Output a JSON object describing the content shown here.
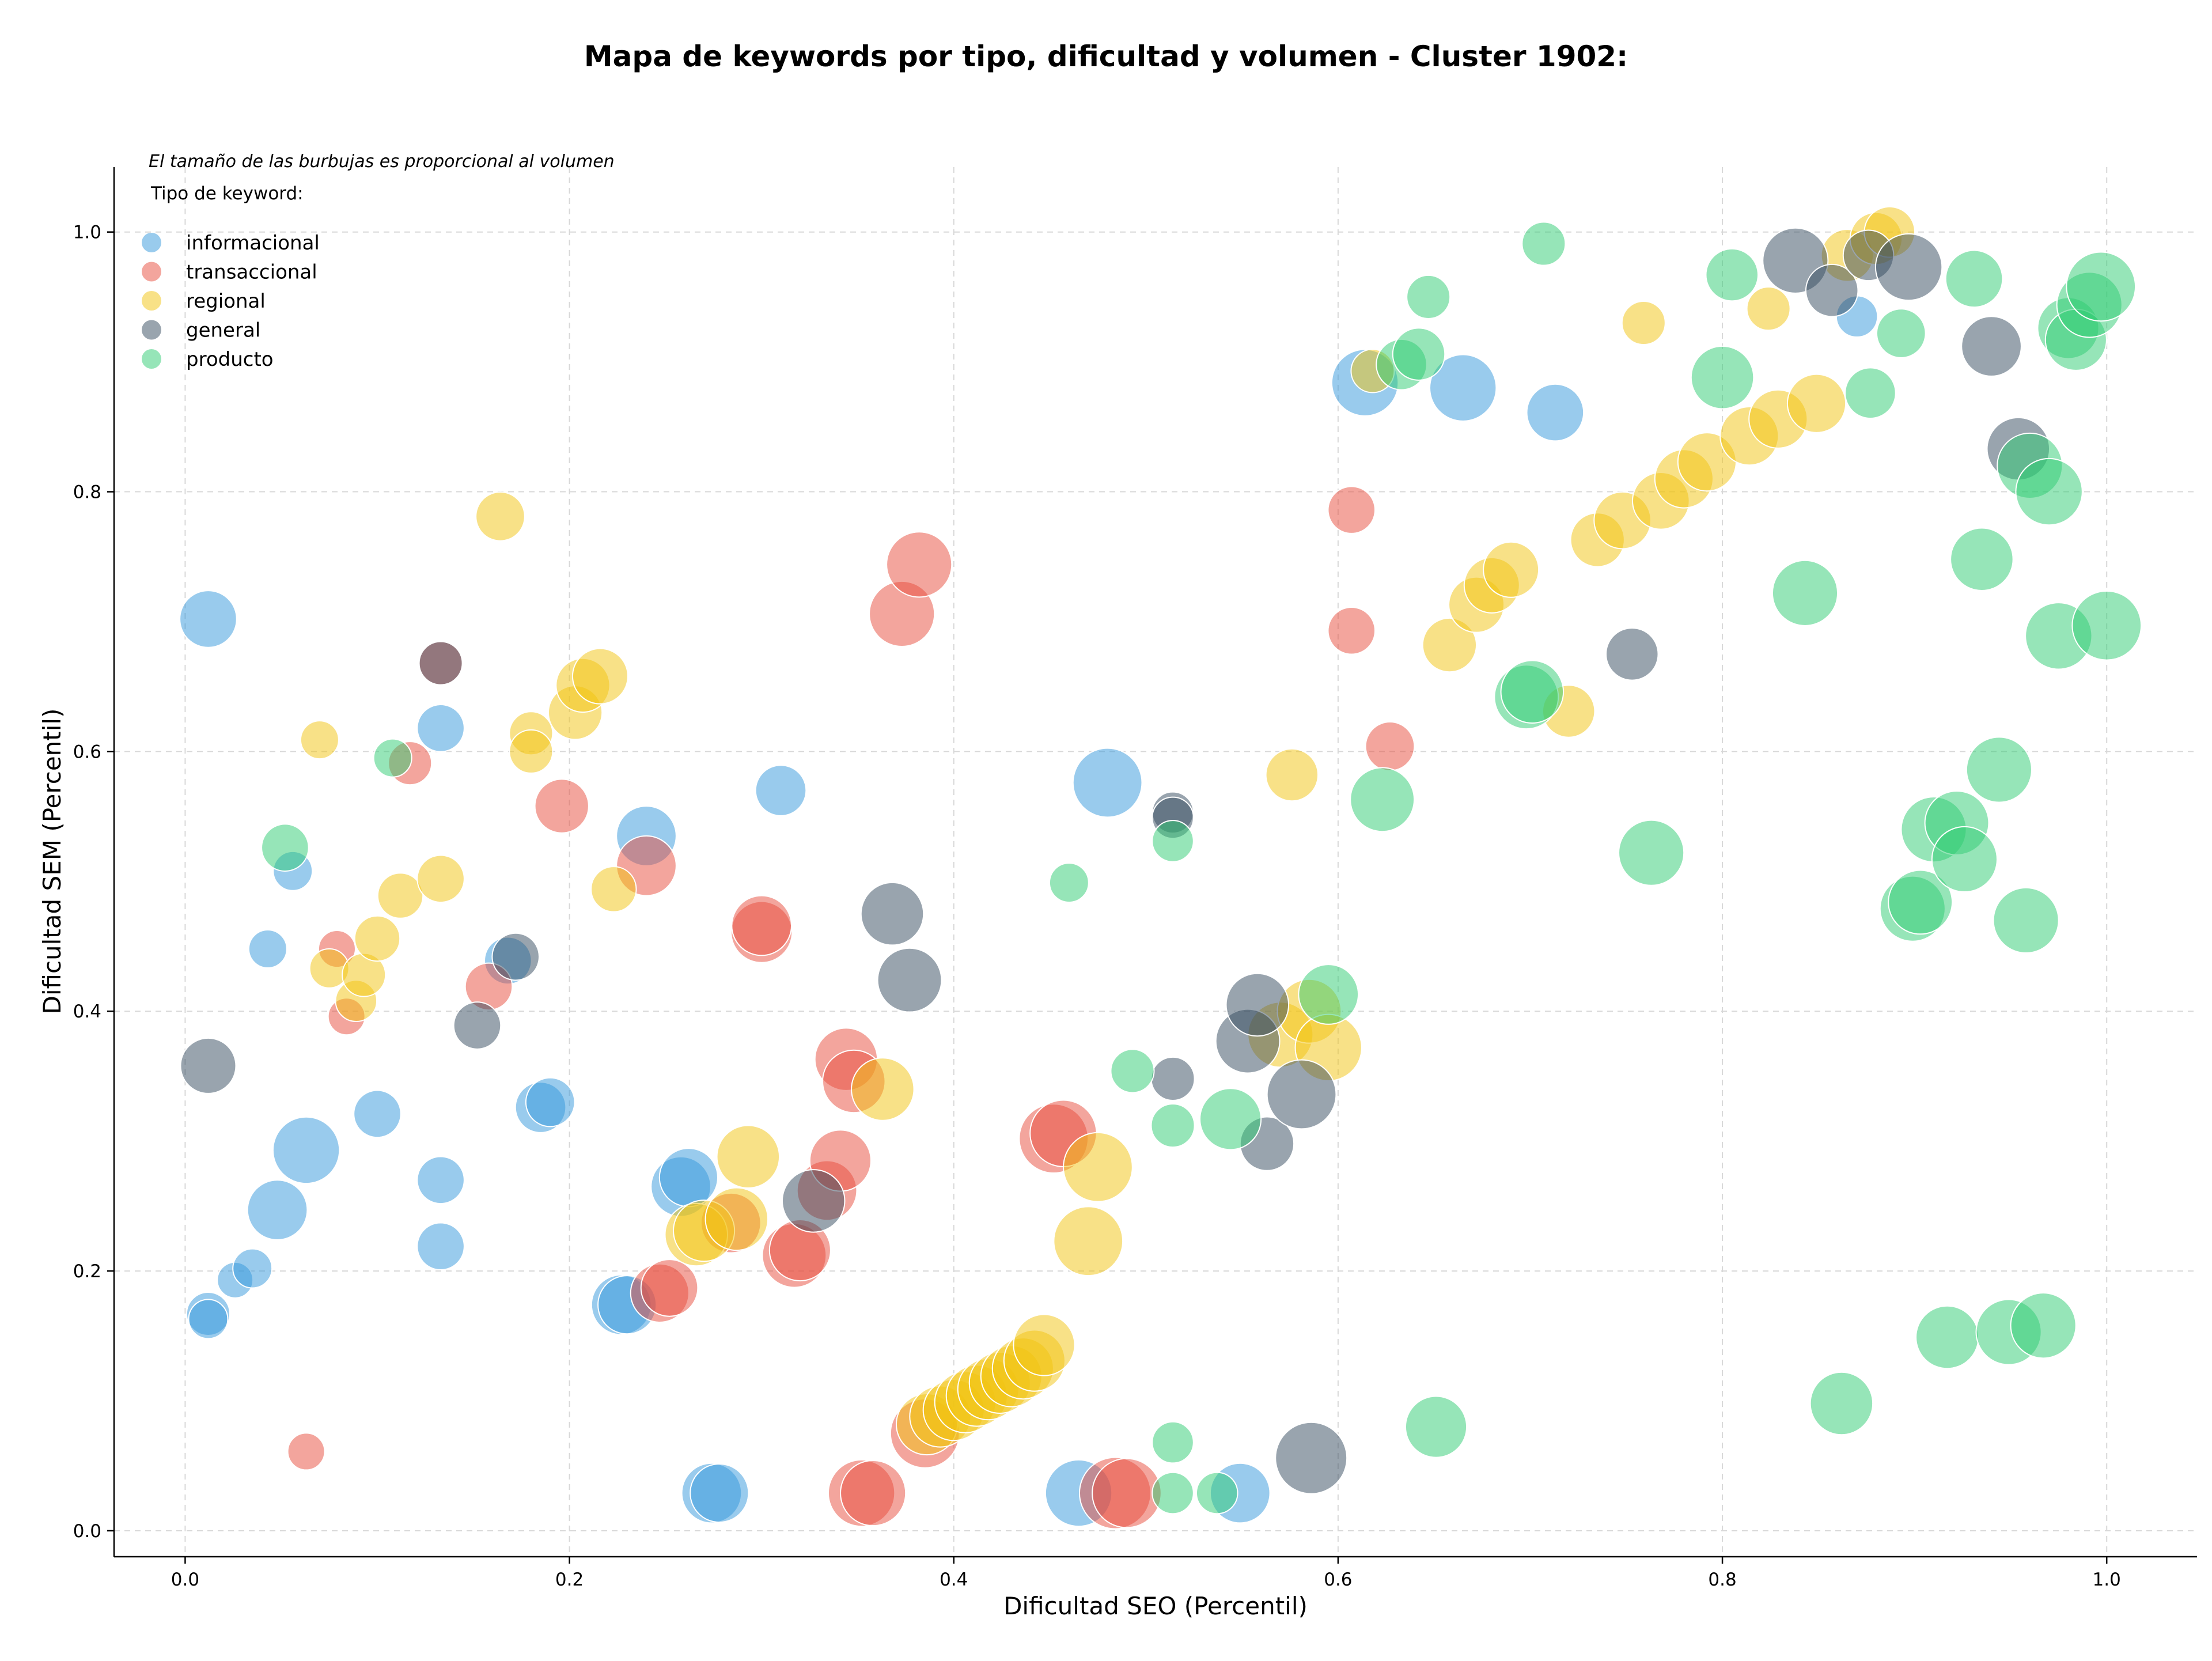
{
  "chart_data": {
    "type": "scatter",
    "title": "Mapa de keywords por tipo, dificultad y volumen - Cluster 1902:",
    "xlabel": "Dificultad SEO (Percentil)",
    "ylabel": "Dificultad SEM (Percentil)",
    "xlim": [
      -0.037,
      1.047
    ],
    "ylim": [
      -0.02,
      1.05
    ],
    "xticks": [
      "0.0",
      "0.2",
      "0.4",
      "0.6",
      "0.8",
      "1.0"
    ],
    "yticks": [
      "0.0",
      "0.2",
      "0.4",
      "0.6",
      "0.8",
      "1.0"
    ],
    "grid": true,
    "note": "El tamaño de las burbujas es proporcional al volumen",
    "legend": {
      "title": "Tipo de keyword:",
      "placement": "top-left"
    },
    "size_encoding": "bubble area proportional to keyword volume (values below are relative sizes, 1 = largest)",
    "series": [
      {
        "name": "informacional",
        "color": "#3498db",
        "points": [
          [
            0.012,
            0.702,
            0.38
          ],
          [
            0.012,
            0.167,
            0.22
          ],
          [
            0.012,
            0.163,
            0.18
          ],
          [
            0.026,
            0.193,
            0.15
          ],
          [
            0.035,
            0.202,
            0.18
          ],
          [
            0.043,
            0.448,
            0.17
          ],
          [
            0.048,
            0.247,
            0.42
          ],
          [
            0.056,
            0.508,
            0.18
          ],
          [
            0.063,
            0.293,
            0.52
          ],
          [
            0.1,
            0.321,
            0.26
          ],
          [
            0.133,
            0.618,
            0.26
          ],
          [
            0.133,
            0.27,
            0.26
          ],
          [
            0.133,
            0.219,
            0.26
          ],
          [
            0.168,
            0.439,
            0.26
          ],
          [
            0.185,
            0.326,
            0.3
          ],
          [
            0.19,
            0.33,
            0.28
          ],
          [
            0.24,
            0.535,
            0.42
          ],
          [
            0.227,
            0.174,
            0.42
          ],
          [
            0.23,
            0.174,
            0.4
          ],
          [
            0.258,
            0.265,
            0.42
          ],
          [
            0.262,
            0.272,
            0.4
          ],
          [
            0.274,
            0.029,
            0.42
          ],
          [
            0.278,
            0.029,
            0.4
          ],
          [
            0.31,
            0.57,
            0.3
          ],
          [
            0.48,
            0.576,
            0.56
          ],
          [
            0.465,
            0.029,
            0.52
          ],
          [
            0.549,
            0.029,
            0.42
          ],
          [
            0.614,
            0.884,
            0.52
          ],
          [
            0.665,
            0.88,
            0.52
          ],
          [
            0.713,
            0.861,
            0.38
          ],
          [
            0.87,
            0.935,
            0.2
          ]
        ]
      },
      {
        "name": "transaccional",
        "color": "#e74c3c",
        "points": [
          [
            0.063,
            0.061,
            0.16
          ],
          [
            0.079,
            0.448,
            0.16
          ],
          [
            0.084,
            0.396,
            0.16
          ],
          [
            0.117,
            0.591,
            0.22
          ],
          [
            0.133,
            0.668,
            0.22
          ],
          [
            0.158,
            0.419,
            0.26
          ],
          [
            0.196,
            0.558,
            0.34
          ],
          [
            0.24,
            0.512,
            0.42
          ],
          [
            0.247,
            0.183,
            0.4
          ],
          [
            0.252,
            0.187,
            0.38
          ],
          [
            0.284,
            0.237,
            0.42
          ],
          [
            0.3,
            0.461,
            0.44
          ],
          [
            0.3,
            0.466,
            0.42
          ],
          [
            0.317,
            0.212,
            0.48
          ],
          [
            0.32,
            0.216,
            0.44
          ],
          [
            0.334,
            0.262,
            0.42
          ],
          [
            0.341,
            0.285,
            0.44
          ],
          [
            0.344,
            0.363,
            0.46
          ],
          [
            0.348,
            0.346,
            0.46
          ],
          [
            0.352,
            0.029,
            0.52
          ],
          [
            0.358,
            0.029,
            0.5
          ],
          [
            0.373,
            0.706,
            0.5
          ],
          [
            0.382,
            0.744,
            0.5
          ],
          [
            0.385,
            0.075,
            0.56
          ],
          [
            0.452,
            0.302,
            0.56
          ],
          [
            0.457,
            0.306,
            0.52
          ],
          [
            0.484,
            0.029,
            0.6
          ],
          [
            0.49,
            0.029,
            0.56
          ],
          [
            0.607,
            0.786,
            0.26
          ],
          [
            0.607,
            0.693,
            0.26
          ],
          [
            0.627,
            0.604,
            0.28
          ]
        ]
      },
      {
        "name": "regional",
        "color": "#f1c40f",
        "points": [
          [
            0.07,
            0.609,
            0.17
          ],
          [
            0.075,
            0.433,
            0.18
          ],
          [
            0.089,
            0.408,
            0.2
          ],
          [
            0.093,
            0.428,
            0.22
          ],
          [
            0.1,
            0.456,
            0.24
          ],
          [
            0.112,
            0.489,
            0.24
          ],
          [
            0.133,
            0.502,
            0.26
          ],
          [
            0.164,
            0.781,
            0.28
          ],
          [
            0.18,
            0.614,
            0.22
          ],
          [
            0.18,
            0.6,
            0.22
          ],
          [
            0.203,
            0.63,
            0.34
          ],
          [
            0.207,
            0.651,
            0.34
          ],
          [
            0.216,
            0.658,
            0.36
          ],
          [
            0.223,
            0.494,
            0.24
          ],
          [
            0.266,
            0.228,
            0.46
          ],
          [
            0.27,
            0.231,
            0.44
          ],
          [
            0.287,
            0.24,
            0.46
          ],
          [
            0.293,
            0.288,
            0.46
          ],
          [
            0.363,
            0.34,
            0.46
          ],
          [
            0.386,
            0.082,
            0.44
          ],
          [
            0.393,
            0.088,
            0.44
          ],
          [
            0.4,
            0.093,
            0.44
          ],
          [
            0.406,
            0.099,
            0.44
          ],
          [
            0.412,
            0.104,
            0.44
          ],
          [
            0.418,
            0.109,
            0.44
          ],
          [
            0.424,
            0.114,
            0.44
          ],
          [
            0.43,
            0.119,
            0.44
          ],
          [
            0.436,
            0.125,
            0.44
          ],
          [
            0.442,
            0.131,
            0.44
          ],
          [
            0.447,
            0.143,
            0.44
          ],
          [
            0.47,
            0.223,
            0.56
          ],
          [
            0.475,
            0.28,
            0.56
          ],
          [
            0.57,
            0.382,
            0.5
          ],
          [
            0.585,
            0.4,
            0.48
          ],
          [
            0.595,
            0.372,
            0.52
          ],
          [
            0.576,
            0.582,
            0.32
          ],
          [
            0.618,
            0.893,
            0.22
          ],
          [
            0.658,
            0.682,
            0.34
          ],
          [
            0.672,
            0.713,
            0.36
          ],
          [
            0.68,
            0.728,
            0.36
          ],
          [
            0.69,
            0.74,
            0.36
          ],
          [
            0.72,
            0.631,
            0.32
          ],
          [
            0.735,
            0.763,
            0.34
          ],
          [
            0.748,
            0.778,
            0.38
          ],
          [
            0.768,
            0.793,
            0.38
          ],
          [
            0.78,
            0.81,
            0.4
          ],
          [
            0.792,
            0.823,
            0.4
          ],
          [
            0.814,
            0.843,
            0.4
          ],
          [
            0.829,
            0.856,
            0.4
          ],
          [
            0.849,
            0.868,
            0.4
          ],
          [
            0.824,
            0.941,
            0.22
          ],
          [
            0.759,
            0.93,
            0.22
          ],
          [
            0.865,
            0.982,
            0.32
          ],
          [
            0.88,
            0.995,
            0.32
          ],
          [
            0.887,
            1.0,
            0.3
          ]
        ]
      },
      {
        "name": "general",
        "color": "#34495e",
        "points": [
          [
            0.012,
            0.358,
            0.36
          ],
          [
            0.133,
            0.668,
            0.22
          ],
          [
            0.152,
            0.389,
            0.26
          ],
          [
            0.172,
            0.442,
            0.26
          ],
          [
            0.327,
            0.254,
            0.46
          ],
          [
            0.368,
            0.475,
            0.46
          ],
          [
            0.377,
            0.424,
            0.48
          ],
          [
            0.514,
            0.553,
            0.2
          ],
          [
            0.514,
            0.549,
            0.2
          ],
          [
            0.514,
            0.348,
            0.22
          ],
          [
            0.553,
            0.377,
            0.48
          ],
          [
            0.558,
            0.405,
            0.46
          ],
          [
            0.563,
            0.298,
            0.34
          ],
          [
            0.581,
            0.336,
            0.56
          ],
          [
            0.586,
            0.056,
            0.6
          ],
          [
            0.753,
            0.675,
            0.32
          ],
          [
            0.838,
            0.978,
            0.5
          ],
          [
            0.857,
            0.955,
            0.32
          ],
          [
            0.876,
            0.982,
            0.3
          ],
          [
            0.897,
            0.973,
            0.52
          ],
          [
            0.94,
            0.912,
            0.42
          ],
          [
            0.954,
            0.833,
            0.46
          ]
        ]
      },
      {
        "name": "producto",
        "color": "#2ecc71",
        "points": [
          [
            0.108,
            0.595,
            0.17
          ],
          [
            0.052,
            0.526,
            0.26
          ],
          [
            0.46,
            0.499,
            0.18
          ],
          [
            0.493,
            0.354,
            0.22
          ],
          [
            0.514,
            0.531,
            0.2
          ],
          [
            0.514,
            0.312,
            0.22
          ],
          [
            0.514,
            0.068,
            0.2
          ],
          [
            0.514,
            0.029,
            0.2
          ],
          [
            0.537,
            0.029,
            0.2
          ],
          [
            0.544,
            0.317,
            0.44
          ],
          [
            0.595,
            0.413,
            0.42
          ],
          [
            0.623,
            0.563,
            0.48
          ],
          [
            0.633,
            0.898,
            0.3
          ],
          [
            0.642,
            0.906,
            0.32
          ],
          [
            0.647,
            0.95,
            0.22
          ],
          [
            0.651,
            0.08,
            0.44
          ],
          [
            0.698,
            0.642,
            0.48
          ],
          [
            0.701,
            0.646,
            0.46
          ],
          [
            0.707,
            0.991,
            0.22
          ],
          [
            0.763,
            0.522,
            0.5
          ],
          [
            0.8,
            0.888,
            0.46
          ],
          [
            0.805,
            0.967,
            0.32
          ],
          [
            0.843,
            0.722,
            0.5
          ],
          [
            0.862,
            0.098,
            0.46
          ],
          [
            0.877,
            0.876,
            0.3
          ],
          [
            0.893,
            0.922,
            0.28
          ],
          [
            0.899,
            0.479,
            0.5
          ],
          [
            0.903,
            0.484,
            0.48
          ],
          [
            0.91,
            0.54,
            0.5
          ],
          [
            0.917,
            0.149,
            0.46
          ],
          [
            0.922,
            0.545,
            0.48
          ],
          [
            0.926,
            0.517,
            0.5
          ],
          [
            0.931,
            0.964,
            0.38
          ],
          [
            0.935,
            0.748,
            0.46
          ],
          [
            0.944,
            0.586,
            0.5
          ],
          [
            0.949,
            0.153,
            0.5
          ],
          [
            0.958,
            0.47,
            0.5
          ],
          [
            0.96,
            0.82,
            0.5
          ],
          [
            0.967,
            0.158,
            0.5
          ],
          [
            0.97,
            0.8,
            0.52
          ],
          [
            0.975,
            0.689,
            0.52
          ],
          [
            0.98,
            0.926,
            0.44
          ],
          [
            0.984,
            0.917,
            0.44
          ],
          [
            0.991,
            0.944,
            0.5
          ],
          [
            0.997,
            0.958,
            0.56
          ],
          [
            1.0,
            0.697,
            0.56
          ]
        ]
      }
    ]
  }
}
